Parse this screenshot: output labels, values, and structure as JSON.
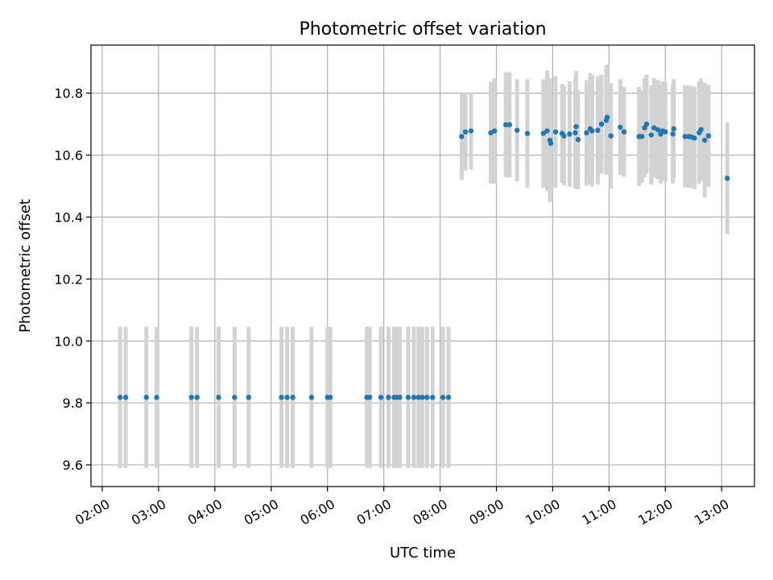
{
  "chart_data": {
    "type": "scatter",
    "title": "Photometric offset variation",
    "xlabel": "UTC time",
    "ylabel": "Photometric offset",
    "grid": true,
    "legend": "none",
    "xlim": [
      "01:48",
      "13:35"
    ],
    "ylim": [
      9.53,
      10.955
    ],
    "x_ticks": [
      "02:00",
      "03:00",
      "04:00",
      "05:00",
      "06:00",
      "07:00",
      "08:00",
      "09:00",
      "10:00",
      "11:00",
      "12:00",
      "13:00"
    ],
    "y_ticks": [
      9.6,
      9.8,
      10.0,
      10.2,
      10.4,
      10.6,
      10.8
    ],
    "y_tick_labels": [
      "9.6",
      "9.8",
      "10.0",
      "10.2",
      "10.4",
      "10.6",
      "10.8"
    ],
    "colors": {
      "point": "#1f77b4",
      "errorbar": "#d3d3d3"
    },
    "series": [
      {
        "points": [
          [
            "02:19",
            9.818,
            0.228
          ],
          [
            "02:25",
            9.818,
            0.228
          ],
          [
            "02:47",
            9.818,
            0.228
          ],
          [
            "02:58",
            9.818,
            0.228
          ],
          [
            "03:35",
            9.818,
            0.228
          ],
          [
            "03:41",
            9.818,
            0.228
          ],
          [
            "04:04",
            9.818,
            0.228
          ],
          [
            "04:21",
            9.818,
            0.228
          ],
          [
            "04:36",
            9.818,
            0.228
          ],
          [
            "05:11",
            9.818,
            0.228
          ],
          [
            "05:17",
            9.818,
            0.228
          ],
          [
            "05:23",
            9.818,
            0.228
          ],
          [
            "05:43",
            9.818,
            0.228
          ],
          [
            "06:00",
            9.818,
            0.228
          ],
          [
            "06:03",
            9.818,
            0.228
          ],
          [
            "06:42",
            9.818,
            0.228
          ],
          [
            "06:45",
            9.818,
            0.228
          ],
          [
            "06:57",
            9.818,
            0.228
          ],
          [
            "07:05",
            9.818,
            0.228
          ],
          [
            "07:11",
            9.818,
            0.228
          ],
          [
            "07:14",
            9.818,
            0.228
          ],
          [
            "07:17",
            9.818,
            0.228
          ],
          [
            "07:26",
            9.818,
            0.228
          ],
          [
            "07:32",
            9.818,
            0.228
          ],
          [
            "07:37",
            9.818,
            0.228
          ],
          [
            "07:41",
            9.818,
            0.228
          ],
          [
            "07:46",
            9.818,
            0.228
          ],
          [
            "07:52",
            9.818,
            0.228
          ],
          [
            "08:03",
            9.818,
            0.228
          ],
          [
            "08:09",
            9.818,
            0.228
          ],
          [
            "08:23",
            10.66,
            0.14
          ],
          [
            "08:27",
            10.675,
            0.125
          ],
          [
            "08:33",
            10.678,
            0.125
          ],
          [
            "08:54",
            10.672,
            0.165
          ],
          [
            "08:58",
            10.678,
            0.17
          ],
          [
            "09:10",
            10.698,
            0.17
          ],
          [
            "09:14",
            10.698,
            0.17
          ],
          [
            "09:22",
            10.68,
            0.165
          ],
          [
            "09:33",
            10.67,
            0.175
          ],
          [
            "09:50",
            10.67,
            0.175
          ],
          [
            "09:54",
            10.678,
            0.195
          ],
          [
            "09:57",
            10.648,
            0.2
          ],
          [
            "09:58",
            10.638,
            0.18
          ],
          [
            "10:03",
            10.675,
            0.18
          ],
          [
            "10:10",
            10.67,
            0.16
          ],
          [
            "10:12",
            10.662,
            0.16
          ],
          [
            "10:18",
            10.668,
            0.17
          ],
          [
            "10:24",
            10.672,
            0.18
          ],
          [
            "10:25",
            10.692,
            0.18
          ],
          [
            "10:27",
            10.65,
            0.16
          ],
          [
            "10:36",
            10.672,
            0.17
          ],
          [
            "10:40",
            10.685,
            0.18
          ],
          [
            "10:42",
            10.678,
            0.18
          ],
          [
            "10:48",
            10.68,
            0.175
          ],
          [
            "10:52",
            10.7,
            0.16
          ],
          [
            "10:57",
            10.712,
            0.175
          ],
          [
            "10:58",
            10.722,
            0.17
          ],
          [
            "11:02",
            10.662,
            0.17
          ],
          [
            "11:12",
            10.69,
            0.155
          ],
          [
            "11:16",
            10.675,
            0.145
          ],
          [
            "11:32",
            10.66,
            0.16
          ],
          [
            "11:35",
            10.66,
            0.15
          ],
          [
            "11:38",
            10.688,
            0.16
          ],
          [
            "11:40",
            10.7,
            0.16
          ],
          [
            "11:45",
            10.665,
            0.16
          ],
          [
            "11:48",
            10.688,
            0.16
          ],
          [
            "11:52",
            10.682,
            0.16
          ],
          [
            "11:55",
            10.668,
            0.16
          ],
          [
            "11:57",
            10.678,
            0.16
          ],
          [
            "12:00",
            10.675,
            0.16
          ],
          [
            "12:08",
            10.668,
            0.16
          ],
          [
            "12:09",
            10.685,
            0.16
          ],
          [
            "12:21",
            10.66,
            0.165
          ],
          [
            "12:25",
            10.66,
            0.165
          ],
          [
            "12:28",
            10.658,
            0.165
          ],
          [
            "12:31",
            10.655,
            0.165
          ],
          [
            "12:36",
            10.672,
            0.165
          ],
          [
            "12:38",
            10.682,
            0.165
          ],
          [
            "12:42",
            10.648,
            0.185
          ],
          [
            "12:46",
            10.662,
            0.165
          ],
          [
            "13:06",
            10.525,
            0.18
          ]
        ]
      }
    ]
  }
}
